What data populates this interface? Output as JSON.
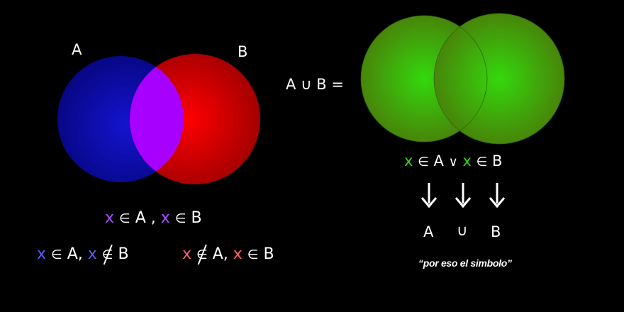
{
  "colors": {
    "background": "#000000",
    "set_a_fill": "#0a0aa8",
    "set_b_fill": "#d00000",
    "intersection_fill": "#a800ff",
    "union_fill": "#33d10a",
    "x_violet": "#b04cff",
    "x_blue": "#5a5cff",
    "x_red": "#ff6060",
    "x_green": "#38d01a"
  },
  "left_diagram": {
    "label_a": "A",
    "label_b": "B"
  },
  "intersection_stmt": {
    "x1": "x",
    "in1": "∈",
    "a": "A",
    "comma": ",",
    "x2": "x",
    "in2": "∈",
    "b": "B"
  },
  "only_a_stmt": {
    "x1": "x",
    "in1": "∈",
    "a": "A,",
    "x2": "x",
    "notin": "∈",
    "b": "B"
  },
  "only_b_stmt": {
    "x1": "x",
    "notin": "∈",
    "a": "A,",
    "x2": "x",
    "in2": "∈",
    "b": "B"
  },
  "union_equation": {
    "a": "A",
    "cup": "∪",
    "b": "B",
    "eq": "="
  },
  "or_stmt": {
    "x1": "x",
    "in1": "∈",
    "a": "A",
    "or": "∨",
    "x2": "x",
    "in2": "∈",
    "b": "B"
  },
  "result_row": {
    "a": "A",
    "cup": "∪",
    "b": "B"
  },
  "note": "“por eso el simbolo”",
  "arrow_icons": [
    "down-arrow-icon",
    "down-arrow-icon",
    "down-arrow-icon"
  ]
}
